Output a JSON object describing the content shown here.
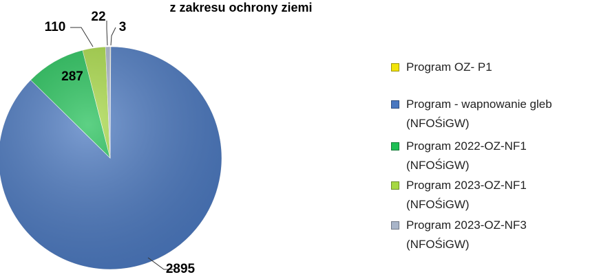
{
  "chart_data": {
    "type": "pie",
    "title": "z zakresu ochrony ziemi",
    "categories": [
      "Program OZ- P1",
      "Program - wapnowanie gleb (NFOŚiGW)",
      "Program 2022-OZ-NF1 (NFOŚiGW)",
      "Program 2023-OZ-NF1 (NFOŚiGW)",
      "Program 2023-OZ-NF3 (NFOŚiGW)"
    ],
    "values": [
      3,
      2895,
      287,
      110,
      22
    ],
    "colors": [
      "#f2e40a",
      "#4a78c0",
      "#1fbf55",
      "#a6d843",
      "#a9b5c9"
    ],
    "legend": "right"
  }
}
